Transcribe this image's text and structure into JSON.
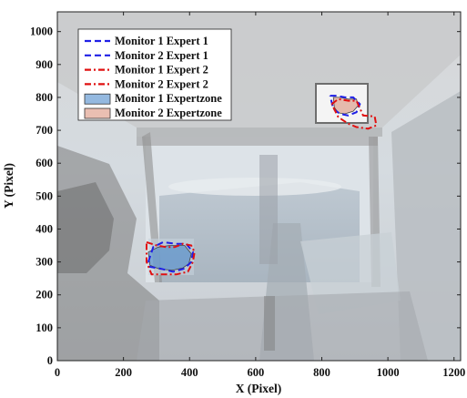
{
  "chart_data": {
    "type": "line",
    "title": "",
    "xlabel": "X (Pixel)",
    "ylabel": "Y (Pixel)",
    "xlim": [
      0,
      1220
    ],
    "ylim": [
      0,
      1060
    ],
    "xticks": [
      0,
      200,
      400,
      600,
      800,
      1000,
      1200
    ],
    "yticks": [
      0,
      100,
      200,
      300,
      400,
      500,
      600,
      700,
      800,
      900,
      1000
    ],
    "grid": false,
    "legend_position": "top-left",
    "background": "faded photograph of a crane cabin interior with two monitors",
    "series": [
      {
        "name": "Monitor 1 Expert 1",
        "kind": "dashed-line",
        "color": "#1f1fe6",
        "x": [
          275,
          290,
          320,
          360,
          390,
          410,
          405,
          385,
          350,
          310,
          280,
          275
        ],
        "y": [
          300,
          345,
          360,
          355,
          355,
          330,
          300,
          280,
          270,
          280,
          285,
          300
        ]
      },
      {
        "name": "Monitor 2 Expert 1",
        "kind": "dashed-line",
        "color": "#1f1fe6",
        "x": [
          825,
          845,
          870,
          895,
          915,
          905,
          880,
          855,
          835,
          825
        ],
        "y": [
          805,
          805,
          800,
          800,
          780,
          755,
          745,
          750,
          765,
          805
        ]
      },
      {
        "name": "Monitor 1 Expert 2",
        "kind": "dashdot-line",
        "color": "#e01010",
        "x": [
          270,
          300,
          330,
          355,
          380,
          405,
          415,
          410,
          395,
          360,
          320,
          285,
          270,
          270
        ],
        "y": [
          360,
          350,
          345,
          345,
          355,
          350,
          330,
          300,
          270,
          262,
          262,
          262,
          300,
          360
        ]
      },
      {
        "name": "Monitor 2 Expert 2",
        "kind": "dashdot-line",
        "color": "#e01010",
        "x": [
          830,
          850,
          880,
          905,
          925,
          960,
          965,
          940,
          905,
          880,
          850,
          830
        ],
        "y": [
          780,
          795,
          790,
          790,
          745,
          742,
          715,
          705,
          710,
          720,
          740,
          780
        ]
      },
      {
        "name": "Monitor 1 Expertzone",
        "kind": "filled-area",
        "color": "#3d7fc7",
        "x": [
          275,
          305,
          340,
          385,
          405,
          398,
          380,
          350,
          310,
          280,
          275
        ],
        "y": [
          330,
          345,
          350,
          350,
          325,
          295,
          282,
          275,
          278,
          290,
          330
        ]
      },
      {
        "name": "Monitor 2 Expertzone",
        "kind": "filled-area",
        "color": "#d98a73",
        "x": [
          835,
          855,
          880,
          905,
          910,
          895,
          870,
          850,
          838,
          835
        ],
        "y": [
          800,
          800,
          795,
          795,
          775,
          758,
          750,
          753,
          770,
          800
        ]
      }
    ]
  }
}
